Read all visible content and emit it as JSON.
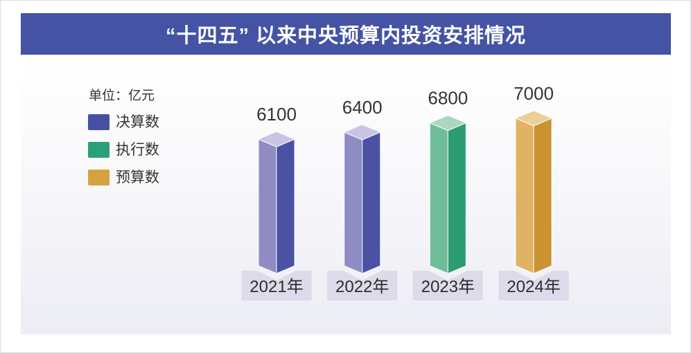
{
  "header": {
    "title": "“十四五” 以来中央预算内投资安排情况",
    "background": "#4553A4",
    "text_color": "#FFFFFF"
  },
  "unit_label": "单位：亿元",
  "legend": {
    "items": [
      {
        "label": "决算数",
        "color": "#454FA5"
      },
      {
        "label": "执行数",
        "color": "#2AA077"
      },
      {
        "label": "预算数",
        "color": "#D5A240"
      }
    ]
  },
  "chart_data": {
    "type": "bar",
    "title": "“十四五” 以来中央预算内投资安排情况",
    "unit": "亿元",
    "categories": [
      "2021年",
      "2022年",
      "2023年",
      "2024年"
    ],
    "values": [
      6100,
      6400,
      6800,
      7000
    ],
    "bars": [
      {
        "year": "2021年",
        "value": 6100,
        "series": "决算数"
      },
      {
        "year": "2022年",
        "value": 6400,
        "series": "决算数"
      },
      {
        "year": "2023年",
        "value": 6800,
        "series": "执行数"
      },
      {
        "year": "2024年",
        "value": 7000,
        "series": "预算数"
      }
    ],
    "series_colors": {
      "决算数": {
        "left": "#8F8CC3",
        "right": "#4B51A3",
        "top": "#C7C5E2"
      },
      "执行数": {
        "left": "#6FBD98",
        "right": "#2B9B72",
        "top": "#ABD7C0"
      },
      "预算数": {
        "left": "#E1B164",
        "right": "#CB9331",
        "top": "#EACF99"
      }
    },
    "plate_color": "#DCDBE9",
    "ylim": [
      0,
      7500
    ],
    "grid": false,
    "legend_position": "top-left",
    "value_labels_shown": true
  }
}
